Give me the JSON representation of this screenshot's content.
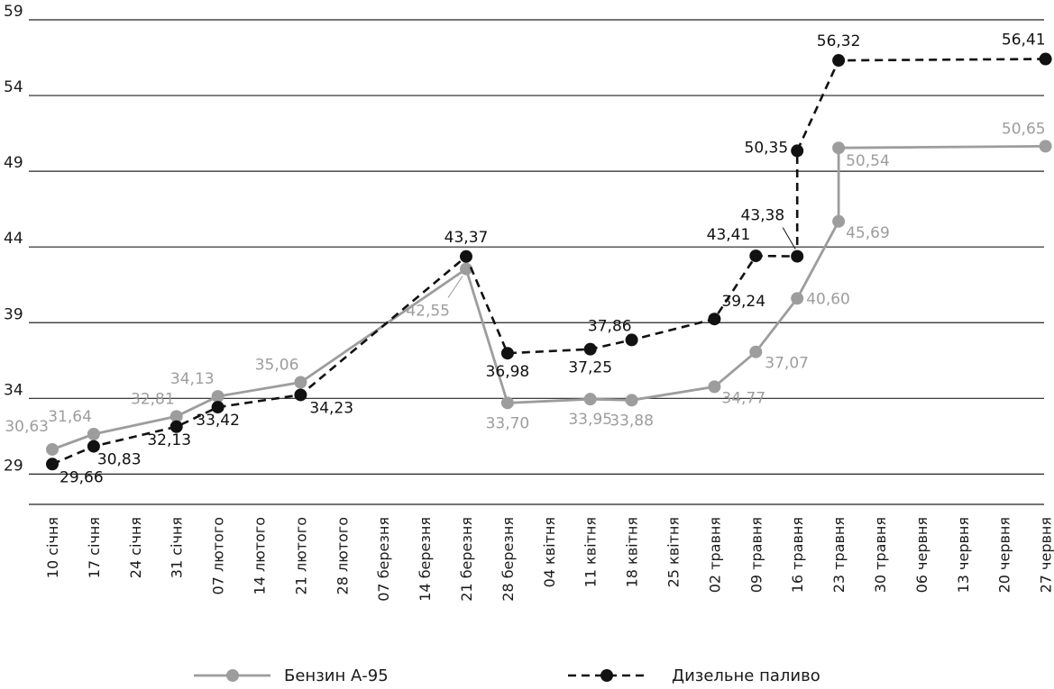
{
  "chart_data": {
    "type": "line",
    "categories": [
      "10 січня",
      "17 січня",
      "24 січня",
      "31 січня",
      "07 лютого",
      "14 лютого",
      "21 лютого",
      "28 лютого",
      "07 березня",
      "14 березня",
      "21 березня",
      "28 березня",
      "04 квітня",
      "11 квітня",
      "18 квітня",
      "25 квітня",
      "02 травня",
      "09 травня",
      "16 травня",
      "23 травня",
      "30 травня",
      "06 червня",
      "13 червня",
      "20 червня",
      "27 червня"
    ],
    "yticks": [
      "29",
      "34",
      "39",
      "44",
      "49",
      "54",
      "59"
    ],
    "ylim": [
      27,
      59
    ],
    "grid": true,
    "legend_position": "bottom",
    "series": [
      {
        "name": "Бензин А-95",
        "color": "#9d9d9d",
        "style": "solid",
        "points": [
          {
            "x": "10 січня",
            "y": 30.63,
            "label": "30,63"
          },
          {
            "x": "17 січня",
            "y": 31.64,
            "label": "31,64"
          },
          {
            "x": "31 січня",
            "y": 32.81,
            "label": "32,81"
          },
          {
            "x": "07 лютого",
            "y": 34.13,
            "label": "34,13"
          },
          {
            "x": "21 лютого",
            "y": 35.06,
            "label": "35,06"
          },
          {
            "x": "21 березня",
            "y": 42.55,
            "label": "42,55"
          },
          {
            "x": "28 березня",
            "y": 33.7,
            "label": "33,70"
          },
          {
            "x": "11 квітня",
            "y": 33.95,
            "label": "33,95"
          },
          {
            "x": "18 квітня",
            "y": 33.88,
            "label": "33,88"
          },
          {
            "x": "02 травня",
            "y": 34.77,
            "label": "34,77"
          },
          {
            "x": "09 травня",
            "y": 37.07,
            "label": "37,07"
          },
          {
            "x": "16 травня",
            "y": 40.6,
            "label": "40,60"
          },
          {
            "x": "23 травня",
            "y": 45.69,
            "label": "45,69"
          },
          {
            "x": "23 травня",
            "y": 50.54,
            "label": "50,54"
          },
          {
            "x": "27 червня",
            "y": 50.65,
            "label": "50,65"
          }
        ]
      },
      {
        "name": "Дизельне паливо",
        "color": "#111111",
        "style": "dashed",
        "points": [
          {
            "x": "10 січня",
            "y": 29.66,
            "label": "29,66"
          },
          {
            "x": "17 січня",
            "y": 30.83,
            "label": "30,83"
          },
          {
            "x": "31 січня",
            "y": 32.13,
            "label": "32,13"
          },
          {
            "x": "07 лютого",
            "y": 33.42,
            "label": "33,42"
          },
          {
            "x": "21 лютого",
            "y": 34.23,
            "label": "34,23"
          },
          {
            "x": "21 березня",
            "y": 43.37,
            "label": "43,37"
          },
          {
            "x": "28 березня",
            "y": 36.98,
            "label": "36,98"
          },
          {
            "x": "11 квітня",
            "y": 37.25,
            "label": "37,25"
          },
          {
            "x": "18 квітня",
            "y": 37.86,
            "label": "37,86"
          },
          {
            "x": "02 травня",
            "y": 39.24,
            "label": "39,24"
          },
          {
            "x": "09 травня",
            "y": 43.41,
            "label": "43,41"
          },
          {
            "x": "16 травня",
            "y": 43.38,
            "label": "43,38"
          },
          {
            "x": "16 травня",
            "y": 50.35,
            "label": "50,35"
          },
          {
            "x": "23 травня",
            "y": 56.32,
            "label": "56,32"
          },
          {
            "x": "27 червня",
            "y": 56.41,
            "label": "56,41"
          }
        ]
      }
    ]
  }
}
